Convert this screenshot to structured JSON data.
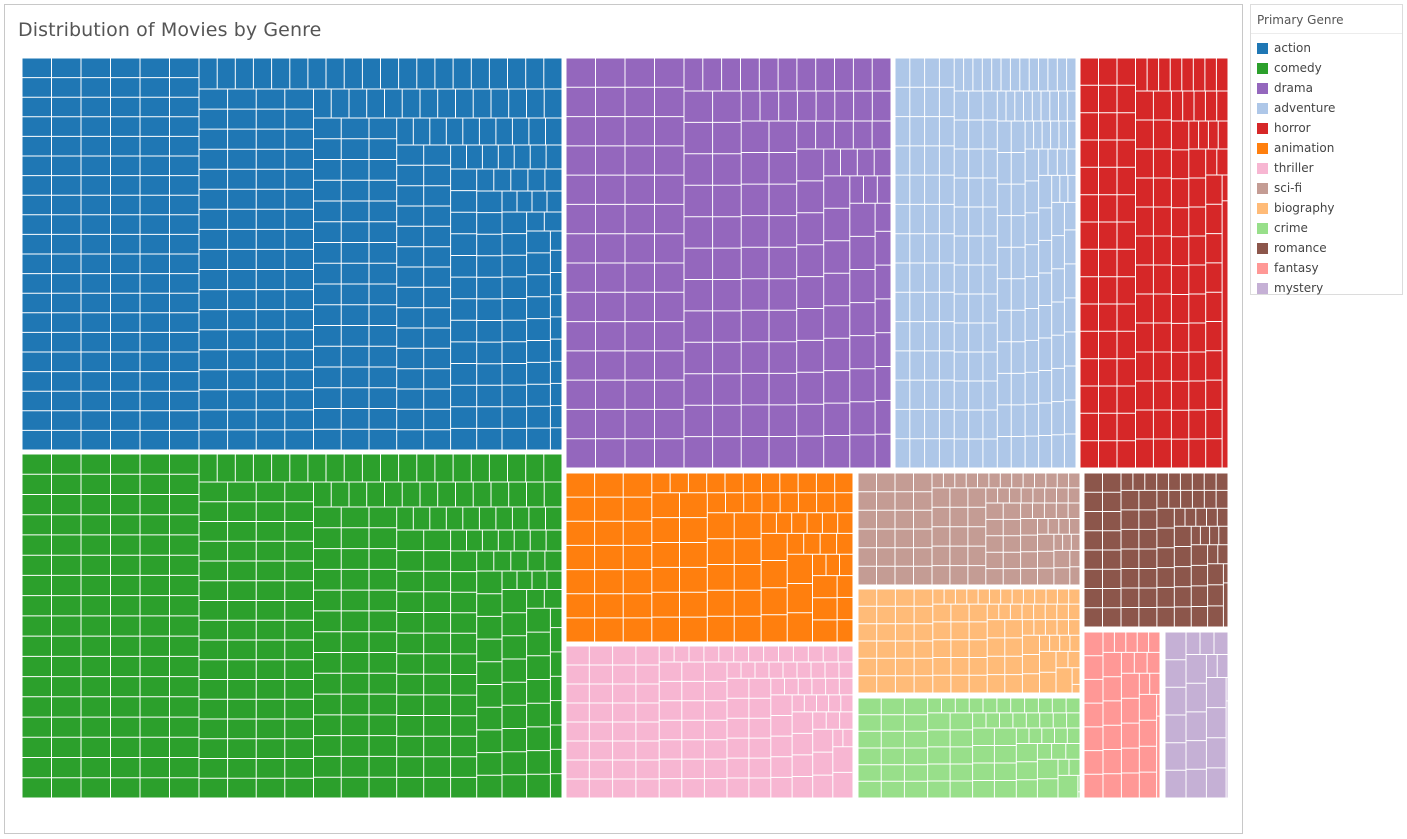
{
  "chart_data": {
    "type": "treemap",
    "title": "Distribution of Movies by Genre",
    "legend_title": "Primary Genre",
    "legend_position": "right",
    "genres": [
      {
        "name": "action",
        "color": "#1f77b4",
        "count": 515
      },
      {
        "name": "comedy",
        "color": "#2ca02c",
        "count": 465
      },
      {
        "name": "drama",
        "color": "#9467bd",
        "count": 300
      },
      {
        "name": "adventure",
        "color": "#aec7e8",
        "count": 150
      },
      {
        "name": "horror",
        "color": "#d62728",
        "count": 120
      },
      {
        "name": "animation",
        "color": "#ff7f0e",
        "count": 100
      },
      {
        "name": "thriller",
        "color": "#f7b6d2",
        "count": 95
      },
      {
        "name": "sci-fi",
        "color": "#c49c94",
        "count": 50
      },
      {
        "name": "biography",
        "color": "#ffbb78",
        "count": 50
      },
      {
        "name": "crime",
        "color": "#98df8a",
        "count": 50
      },
      {
        "name": "romance",
        "color": "#8c564b",
        "count": 50
      },
      {
        "name": "fantasy",
        "color": "#ff9896",
        "count": 25
      },
      {
        "name": "mystery",
        "color": "#c5b0d5",
        "count": 20
      }
    ]
  }
}
